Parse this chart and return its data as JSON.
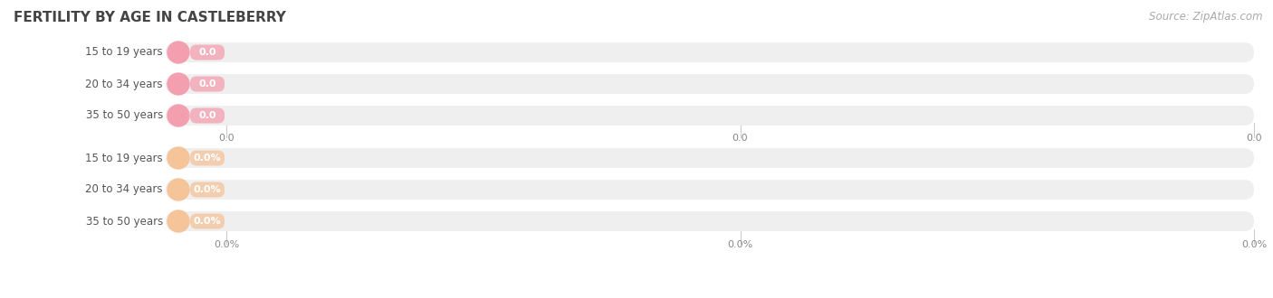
{
  "title": "Fertility by Age in Castleberry",
  "title_upper": "FERTILITY BY AGE IN CASTLEBERRY",
  "source_text": "Source: ZipAtlas.com",
  "top_section": {
    "categories": [
      "15 to 19 years",
      "20 to 34 years",
      "35 to 50 years"
    ],
    "values": [
      0.0,
      0.0,
      0.0
    ],
    "bar_color": "#f49faf",
    "value_label": "0.0",
    "tick_labels": [
      "0.0",
      "0.0",
      "0.0"
    ]
  },
  "bottom_section": {
    "categories": [
      "15 to 19 years",
      "20 to 34 years",
      "35 to 50 years"
    ],
    "values": [
      0.0,
      0.0,
      0.0
    ],
    "bar_color": "#f5c499",
    "value_label": "0.0%",
    "tick_labels": [
      "0.0%",
      "0.0%",
      "0.0%"
    ]
  },
  "bg_color": "#ffffff",
  "bar_bg_color": "#efefef",
  "title_fontsize": 11,
  "label_fontsize": 8.5,
  "tick_fontsize": 8,
  "source_fontsize": 8.5
}
